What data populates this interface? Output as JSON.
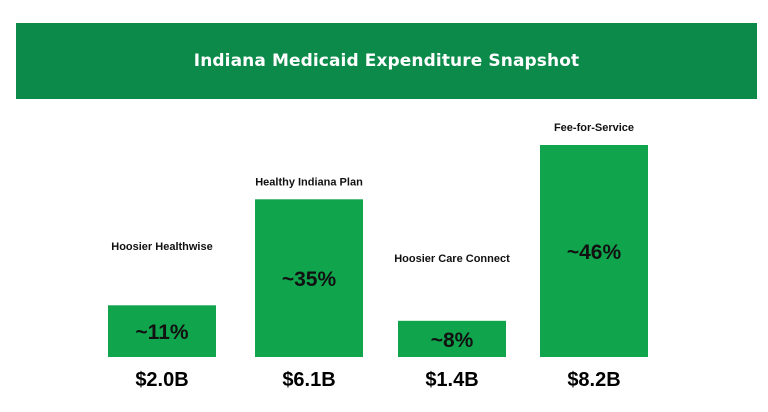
{
  "banner": {
    "title": "Indiana Medicaid Expenditure Snapshot",
    "color": "#0b8a4a"
  },
  "chart_data": {
    "type": "bar",
    "title": "Indiana Medicaid Expenditure Snapshot",
    "xlabel": "",
    "ylabel": "",
    "grid": false,
    "legend": "none",
    "bar_color": "#10a54d",
    "categories": [
      "Hoosier Healthwise",
      "Healthy Indiana Plan",
      "Hoosier Care Connect",
      "Fee-for-Service"
    ],
    "values": [
      2.0,
      6.1,
      1.4,
      8.2
    ],
    "value_labels": [
      "$2.0B",
      "$6.1B",
      "$1.4B",
      "$8.2B"
    ],
    "percent_labels": [
      "~11%",
      "~35%",
      "~8%",
      "~46%"
    ],
    "units": "$B"
  }
}
